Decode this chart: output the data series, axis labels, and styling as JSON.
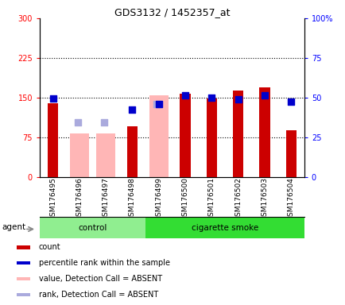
{
  "title": "GDS3132 / 1452357_at",
  "samples": [
    "GSM176495",
    "GSM176496",
    "GSM176497",
    "GSM176498",
    "GSM176499",
    "GSM176500",
    "GSM176501",
    "GSM176502",
    "GSM176503",
    "GSM176504"
  ],
  "count_values": [
    140,
    0,
    0,
    95,
    0,
    158,
    148,
    163,
    170,
    88
  ],
  "percentile_values": [
    148,
    0,
    0,
    128,
    138,
    155,
    150,
    147,
    155,
    142
  ],
  "absent_value_bars": [
    0,
    82,
    82,
    0,
    155,
    0,
    0,
    0,
    0,
    0
  ],
  "absent_rank_bars": [
    0,
    103,
    103,
    0,
    138,
    0,
    0,
    0,
    0,
    0
  ],
  "count_present": [
    true,
    false,
    false,
    true,
    false,
    true,
    true,
    true,
    true,
    true
  ],
  "percentile_present": [
    true,
    false,
    false,
    true,
    true,
    true,
    true,
    true,
    true,
    true
  ],
  "absent_value_present": [
    false,
    true,
    true,
    false,
    true,
    false,
    false,
    false,
    false,
    false
  ],
  "absent_rank_present": [
    false,
    true,
    true,
    false,
    true,
    false,
    false,
    false,
    false,
    false
  ],
  "groups": [
    "control",
    "control",
    "control",
    "control",
    "cigarette smoke",
    "cigarette smoke",
    "cigarette smoke",
    "cigarette smoke",
    "cigarette smoke",
    "cigarette smoke"
  ],
  "group_colors": {
    "control": "#90EE90",
    "cigarette smoke": "#33DD33"
  },
  "ylim_left": [
    0,
    300
  ],
  "ylim_right": [
    0,
    100
  ],
  "yticks_left": [
    0,
    75,
    150,
    225,
    300
  ],
  "ytick_labels_left": [
    "0",
    "75",
    "150",
    "225",
    "300"
  ],
  "yticks_right": [
    0,
    25,
    50,
    75,
    100
  ],
  "ytick_labels_right": [
    "0",
    "25",
    "50",
    "75",
    "100%"
  ],
  "hlines": [
    75,
    150,
    225
  ],
  "bar_color_count": "#CC0000",
  "bar_color_absent_value": "#FFB6B6",
  "square_color_present": "#0000CC",
  "square_color_absent": "#AAAADD",
  "agent_label": "agent",
  "legend_items": [
    {
      "label": "count",
      "color": "#CC0000"
    },
    {
      "label": "percentile rank within the sample",
      "color": "#0000CC"
    },
    {
      "label": "value, Detection Call = ABSENT",
      "color": "#FFB6B6"
    },
    {
      "label": "rank, Detection Call = ABSENT",
      "color": "#AAAADD"
    }
  ],
  "bar_width": 0.4,
  "square_size": 40,
  "scale_factor": 3.0
}
